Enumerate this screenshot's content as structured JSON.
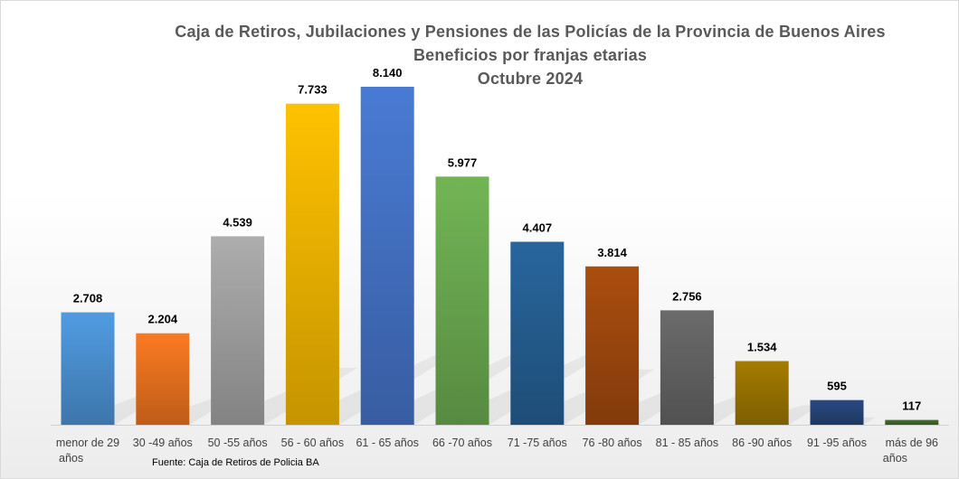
{
  "chart_data": {
    "type": "bar",
    "title_lines": [
      "Caja de Retiros, Jubilaciones y Pensiones de las Policías de la Provincia de Buenos Aires",
      "Beneficios por franjas etarias",
      "Octubre 2024"
    ],
    "categories": [
      "menor de 29 años",
      "30 -49 años",
      "50 -55 años",
      "56 - 60 años",
      "61 - 65 años",
      "66 -70 años",
      "71 -75 años",
      "76 -80 años",
      "81 - 85 años",
      "86 -90 años",
      "91 -95 años",
      "más de 96 años"
    ],
    "values": [
      2708,
      2204,
      4539,
      7733,
      8140,
      5977,
      4407,
      3814,
      2756,
      1534,
      595,
      117
    ],
    "value_labels": [
      "2.708",
      "2.204",
      "4.539",
      "7.733",
      "8.140",
      "5.977",
      "4.407",
      "3.814",
      "2.756",
      "1.534",
      "595",
      "117"
    ],
    "colors": [
      "#4a90d0",
      "#e8711f",
      "#a0a0a0",
      "#f0b400",
      "#4472c4",
      "#6aa84f",
      "#255e91",
      "#9e480e",
      "#636363",
      "#997300",
      "#264478",
      "#43682b"
    ],
    "grid": false,
    "legend": "none",
    "source": "Fuente: Caja de Retiros de Policia BA"
  }
}
